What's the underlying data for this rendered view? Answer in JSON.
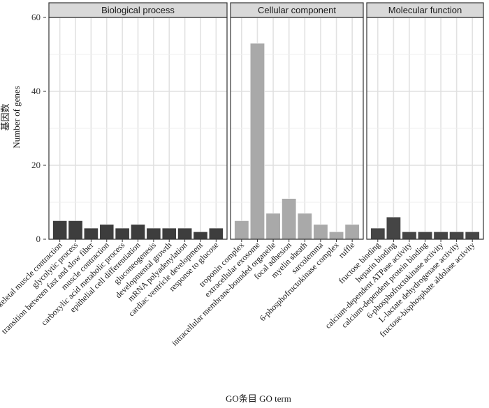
{
  "chart_data": {
    "type": "bar",
    "ylabel_cn": "基因数",
    "ylabel_en": "Number of genes",
    "xlabel": "GO条目  GO term",
    "ylim": [
      0,
      60
    ],
    "yticks": [
      0,
      20,
      40,
      60
    ],
    "grid": true,
    "panels": [
      {
        "title": "Biological process",
        "color": "#3d3d3d",
        "categories": [
          "skeletal muscle contraction",
          "glycolytic process",
          "transition between fast and slow fiber",
          "muscle contraction",
          "carboxylic acid metabolic process",
          "epithelial cell differentiation",
          "gluconeogenesis",
          "developmental growth",
          "mRNA polyadenylation",
          "cardiac ventricle development",
          "response to glucose"
        ],
        "values": [
          5,
          5,
          3,
          4,
          3,
          4,
          3,
          3,
          3,
          2,
          3
        ]
      },
      {
        "title": "Cellular component",
        "color": "#a9a9a9",
        "categories": [
          "troponin complex",
          "extracellular exosome",
          "intracellular membrane-bounded organelle",
          "focal adhesion",
          "myelin sheath",
          "sarcolemma",
          "6-phosphofructokinase complex",
          "ruffle"
        ],
        "values": [
          5,
          53,
          7,
          11,
          7,
          4,
          2,
          4
        ]
      },
      {
        "title": "Molecular function",
        "color": "#454545",
        "categories": [
          "fructose binding",
          "heparin binding",
          "calcium-dependent ATPase activity",
          "calcium-dependent protein binding",
          "6-phosphofructokinase activity",
          "L-lactate dehydrogenase activity",
          "fructose-bisphosphate aldolase activity"
        ],
        "values": [
          3,
          6,
          2,
          2,
          2,
          2,
          2
        ]
      }
    ]
  }
}
